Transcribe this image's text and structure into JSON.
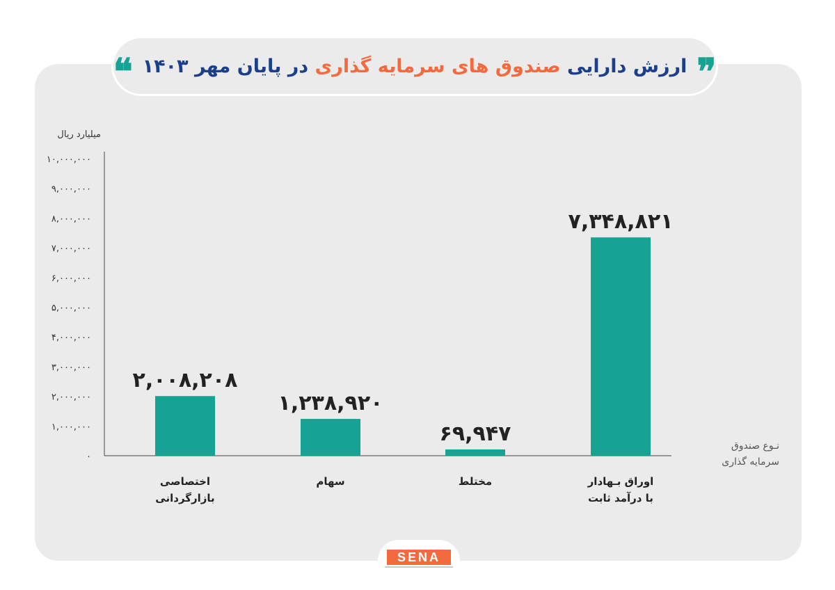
{
  "title": {
    "part1": "ارزش دارایی",
    "highlight": "صندوق های سرمایه گذاری",
    "part2": "در پایان مهر ۱۴۰۳",
    "open_quote": "❝",
    "close_quote": "❞"
  },
  "logo": {
    "text": "SENA"
  },
  "colors": {
    "bar": "#17a394",
    "title": "#1b3f8a",
    "highlight": "#f26a3d",
    "panel": "#ebebeb"
  },
  "chart_data": {
    "type": "bar",
    "ylabel": "میلیارد ریال",
    "xlabel": [
      "نـوع صندوق",
      "سرمایه گذاری"
    ],
    "ylim": [
      0,
      10000000
    ],
    "yticks": [
      0,
      1000000,
      2000000,
      3000000,
      4000000,
      5000000,
      6000000,
      7000000,
      8000000,
      9000000,
      10000000
    ],
    "ytick_labels": [
      "۰",
      "۱,۰۰۰,۰۰۰",
      "۲,۰۰۰,۰۰۰",
      "۳,۰۰۰,۰۰۰",
      "۴,۰۰۰,۰۰۰",
      "۵,۰۰۰,۰۰۰",
      "۶,۰۰۰,۰۰۰",
      "۷,۰۰۰,۰۰۰",
      "۸,۰۰۰,۰۰۰",
      "۹,۰۰۰,۰۰۰",
      "۱۰,۰۰۰,۰۰۰"
    ],
    "categories": [
      [
        "اختصاصی",
        "بازارگردانی"
      ],
      [
        "سهام"
      ],
      [
        "مختلط"
      ],
      [
        "اوراق بـهادار",
        "با درآمد ثابت"
      ]
    ],
    "values": [
      2008208,
      1238920,
      69947,
      7348821
    ],
    "value_labels": [
      "۲,۰۰۸,۲۰۸",
      "۱,۲۳۸,۹۲۰",
      "۶۹,۹۴۷",
      "۷,۳۴۸,۸۲۱"
    ],
    "grid": false,
    "legend": "none"
  }
}
